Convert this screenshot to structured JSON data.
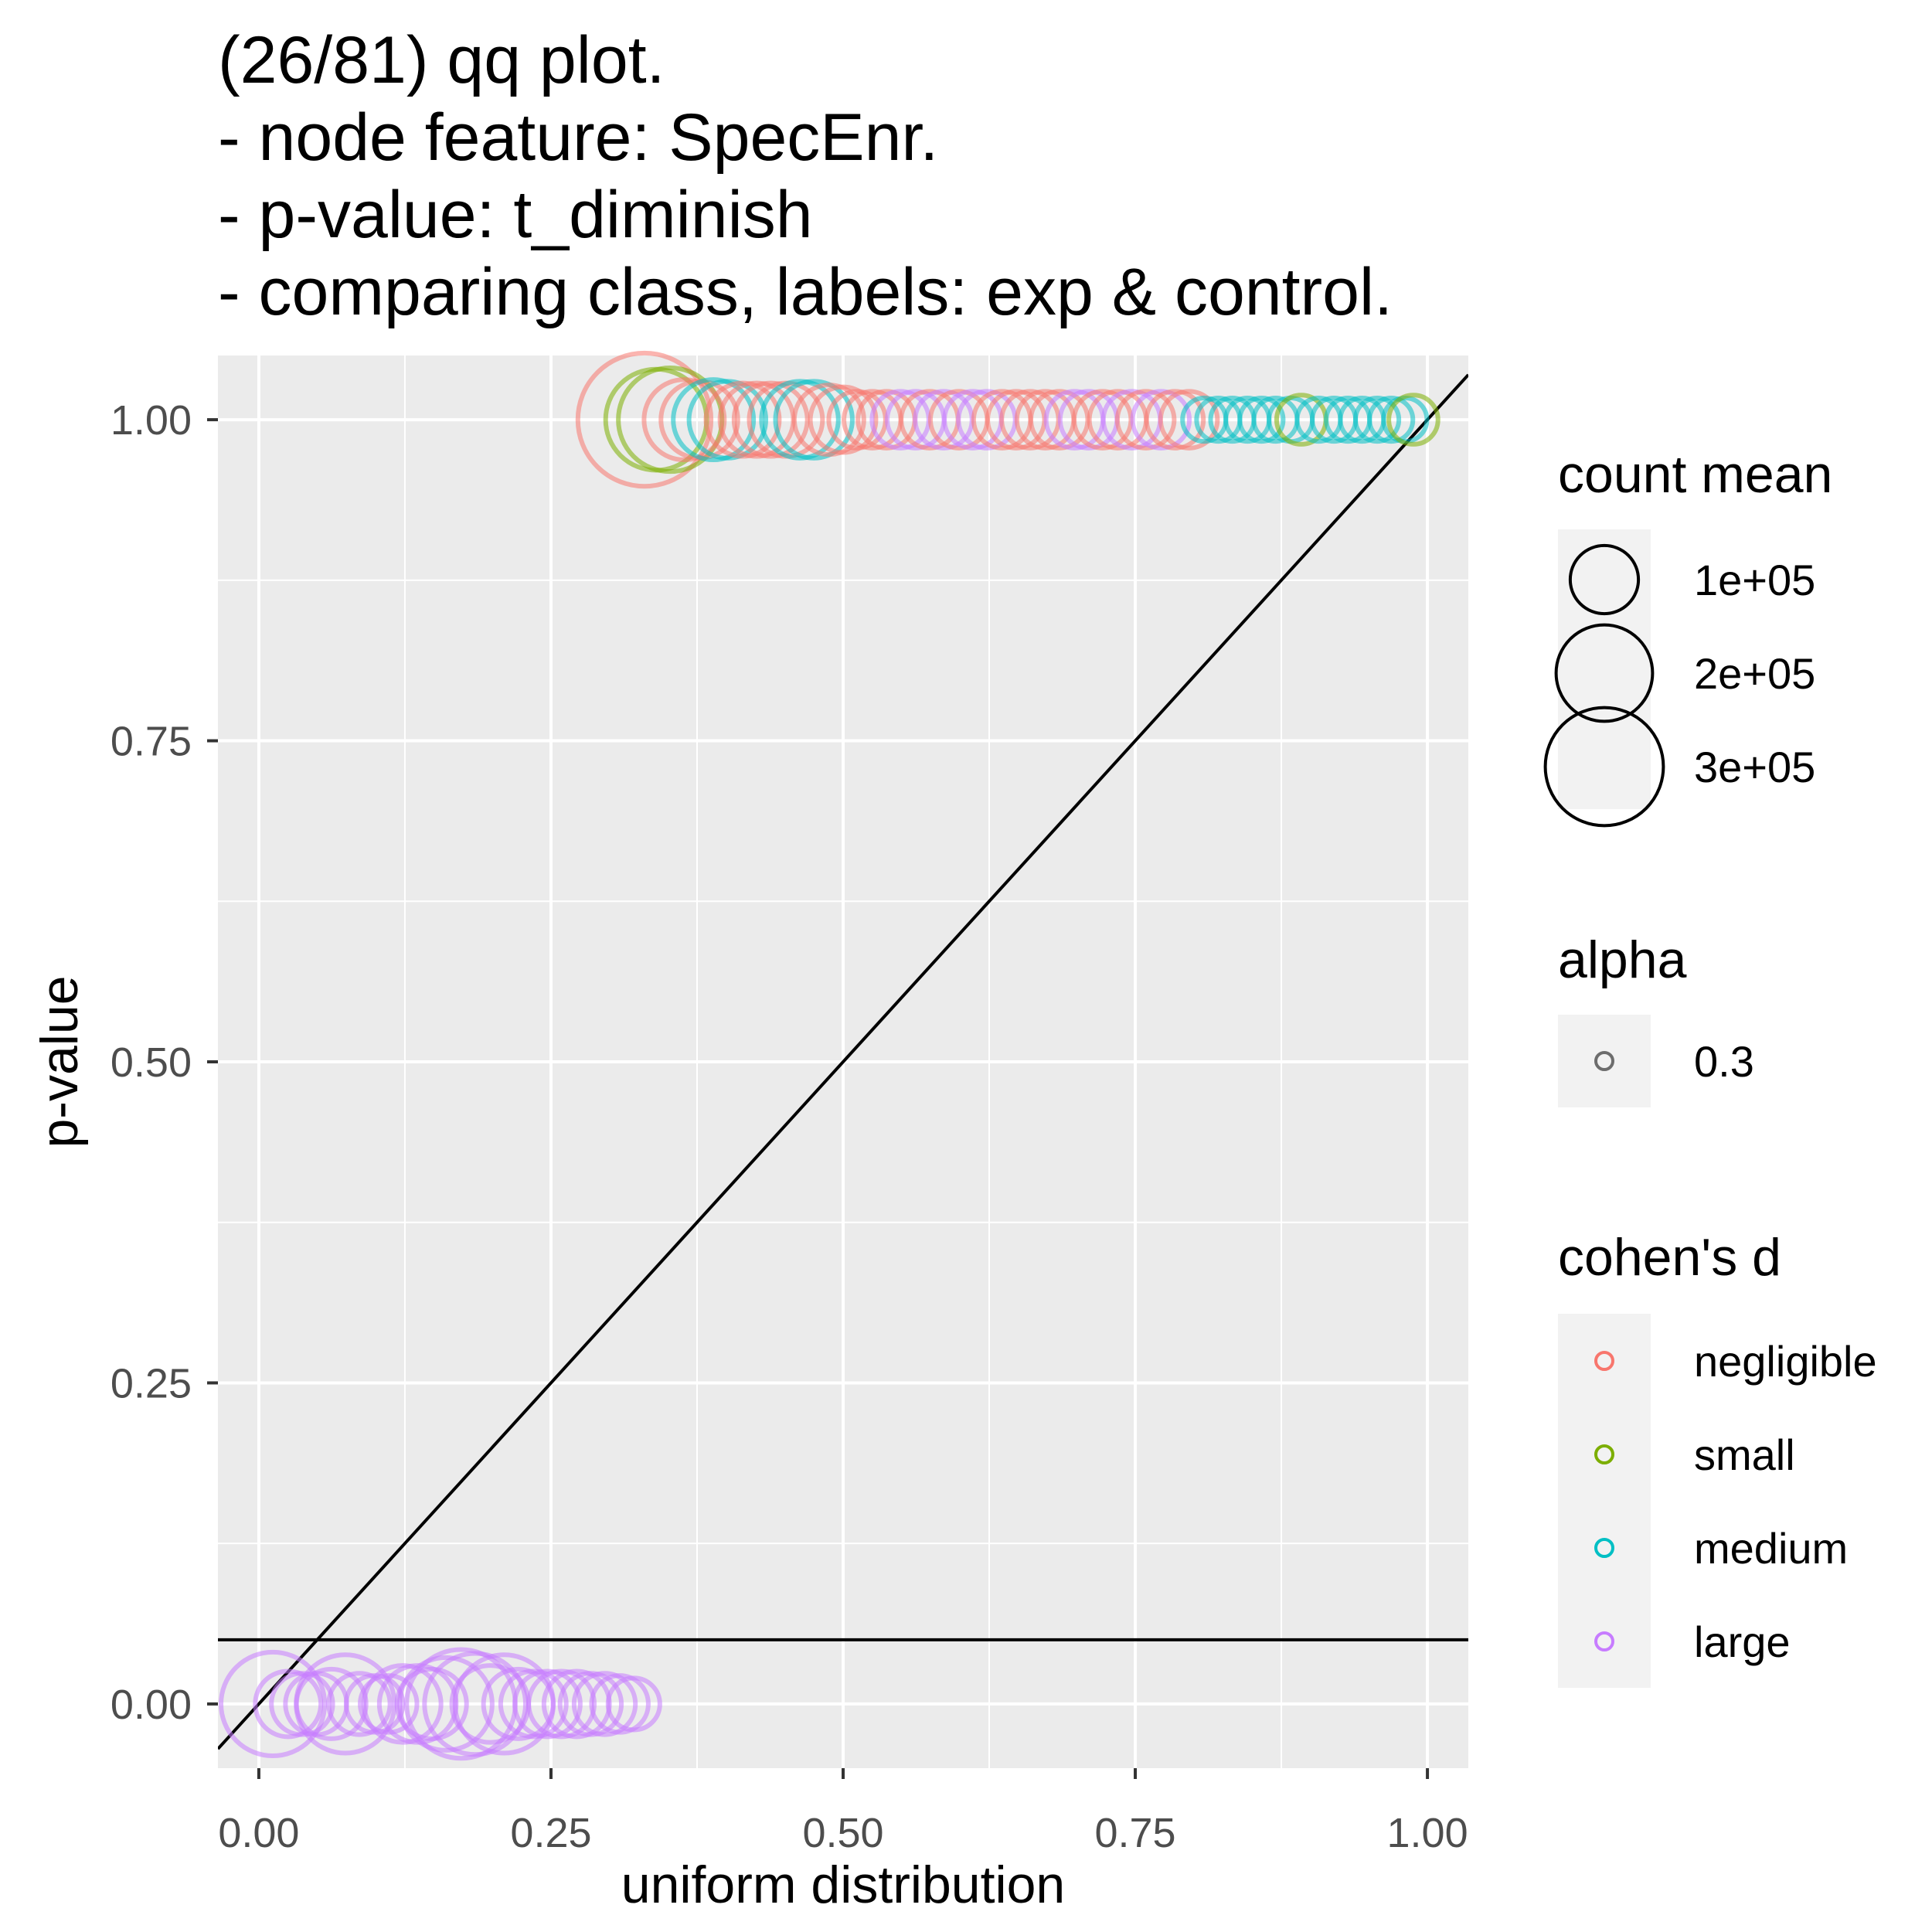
{
  "title": {
    "lines": [
      "(26/81) qq plot.",
      "- node feature: SpecEnr.",
      "- p-value: t_diminish",
      "- comparing class, labels: exp & control."
    ]
  },
  "chart_data": {
    "type": "scatter",
    "title": "(26/81) qq plot. - node feature: SpecEnr. - p-value: t_diminish - comparing class, labels: exp & control.",
    "xlabel": "uniform distribution",
    "ylabel": "p-value",
    "xlim": [
      -0.035,
      1.035
    ],
    "ylim": [
      -0.05,
      1.05
    ],
    "xticks": [
      0.0,
      0.25,
      0.5,
      0.75,
      1.0
    ],
    "xtick_labels": [
      "0.00",
      "0.25",
      "0.50",
      "0.75",
      "1.00"
    ],
    "yticks": [
      0.0,
      0.25,
      0.5,
      0.75,
      1.0
    ],
    "ytick_labels": [
      "0.00",
      "0.25",
      "0.50",
      "0.75",
      "1.00"
    ],
    "reference_lines": [
      {
        "type": "diagonal",
        "intercept": 0,
        "slope": 1,
        "color": "#000000"
      },
      {
        "type": "horizontal",
        "y": 0.05,
        "color": "#000000"
      }
    ],
    "colors": {
      "negligible": "#F8766D",
      "small": "#7CAE00",
      "medium": "#00BFC4",
      "large": "#C77CFF"
    },
    "points": [
      {
        "x": 0.012,
        "y": 0.0,
        "size": 200000,
        "cohen": "large"
      },
      {
        "x": 0.025,
        "y": 0.0,
        "size": 80000,
        "cohen": "large"
      },
      {
        "x": 0.037,
        "y": 0.0,
        "size": 70000,
        "cohen": "large"
      },
      {
        "x": 0.049,
        "y": 0.0,
        "size": 70000,
        "cohen": "large"
      },
      {
        "x": 0.062,
        "y": 0.0,
        "size": 90000,
        "cohen": "large"
      },
      {
        "x": 0.074,
        "y": 0.0,
        "size": 180000,
        "cohen": "large"
      },
      {
        "x": 0.086,
        "y": 0.0,
        "size": 70000,
        "cohen": "large"
      },
      {
        "x": 0.099,
        "y": 0.0,
        "size": 60000,
        "cohen": "large"
      },
      {
        "x": 0.111,
        "y": 0.0,
        "size": 60000,
        "cohen": "large"
      },
      {
        "x": 0.123,
        "y": 0.0,
        "size": 110000,
        "cohen": "large"
      },
      {
        "x": 0.136,
        "y": 0.0,
        "size": 110000,
        "cohen": "large"
      },
      {
        "x": 0.148,
        "y": 0.0,
        "size": 90000,
        "cohen": "large"
      },
      {
        "x": 0.16,
        "y": 0.0,
        "size": 160000,
        "cohen": "large"
      },
      {
        "x": 0.173,
        "y": 0.0,
        "size": 220000,
        "cohen": "large"
      },
      {
        "x": 0.185,
        "y": 0.0,
        "size": 190000,
        "cohen": "large"
      },
      {
        "x": 0.198,
        "y": 0.0,
        "size": 110000,
        "cohen": "large"
      },
      {
        "x": 0.21,
        "y": 0.0,
        "size": 180000,
        "cohen": "large"
      },
      {
        "x": 0.222,
        "y": 0.0,
        "size": 90000,
        "cohen": "large"
      },
      {
        "x": 0.235,
        "y": 0.0,
        "size": 80000,
        "cohen": "large"
      },
      {
        "x": 0.247,
        "y": 0.0,
        "size": 80000,
        "cohen": "large"
      },
      {
        "x": 0.259,
        "y": 0.0,
        "size": 80000,
        "cohen": "large"
      },
      {
        "x": 0.272,
        "y": 0.0,
        "size": 80000,
        "cohen": "large"
      },
      {
        "x": 0.284,
        "y": 0.0,
        "size": 70000,
        "cohen": "large"
      },
      {
        "x": 0.296,
        "y": 0.0,
        "size": 70000,
        "cohen": "large"
      },
      {
        "x": 0.309,
        "y": 0.0,
        "size": 60000,
        "cohen": "large"
      },
      {
        "x": 0.321,
        "y": 0.0,
        "size": 50000,
        "cohen": "large"
      },
      {
        "x": 0.33,
        "y": 1.0,
        "size": 330000,
        "cohen": "negligible"
      },
      {
        "x": 0.34,
        "y": 1.0,
        "size": 190000,
        "cohen": "small"
      },
      {
        "x": 0.352,
        "y": 1.0,
        "size": 200000,
        "cohen": "small"
      },
      {
        "x": 0.364,
        "y": 1.0,
        "size": 120000,
        "cohen": "negligible"
      },
      {
        "x": 0.377,
        "y": 1.0,
        "size": 110000,
        "cohen": "negligible"
      },
      {
        "x": 0.389,
        "y": 1.0,
        "size": 120000,
        "cohen": "medium"
      },
      {
        "x": 0.401,
        "y": 1.0,
        "size": 110000,
        "cohen": "medium"
      },
      {
        "x": 0.414,
        "y": 1.0,
        "size": 100000,
        "cohen": "negligible"
      },
      {
        "x": 0.426,
        "y": 1.0,
        "size": 100000,
        "cohen": "negligible"
      },
      {
        "x": 0.438,
        "y": 1.0,
        "size": 100000,
        "cohen": "negligible"
      },
      {
        "x": 0.451,
        "y": 1.0,
        "size": 100000,
        "cohen": "negligible"
      },
      {
        "x": 0.463,
        "y": 1.0,
        "size": 110000,
        "cohen": "medium"
      },
      {
        "x": 0.475,
        "y": 1.0,
        "size": 110000,
        "cohen": "medium"
      },
      {
        "x": 0.488,
        "y": 1.0,
        "size": 90000,
        "cohen": "negligible"
      },
      {
        "x": 0.5,
        "y": 1.0,
        "size": 80000,
        "cohen": "negligible"
      },
      {
        "x": 0.512,
        "y": 1.0,
        "size": 60000,
        "cohen": "negligible"
      },
      {
        "x": 0.525,
        "y": 1.0,
        "size": 60000,
        "cohen": "negligible"
      },
      {
        "x": 0.537,
        "y": 1.0,
        "size": 60000,
        "cohen": "negligible"
      },
      {
        "x": 0.549,
        "y": 1.0,
        "size": 60000,
        "cohen": "large"
      },
      {
        "x": 0.562,
        "y": 1.0,
        "size": 60000,
        "cohen": "large"
      },
      {
        "x": 0.574,
        "y": 1.0,
        "size": 60000,
        "cohen": "negligible"
      },
      {
        "x": 0.586,
        "y": 1.0,
        "size": 60000,
        "cohen": "large"
      },
      {
        "x": 0.599,
        "y": 1.0,
        "size": 60000,
        "cohen": "negligible"
      },
      {
        "x": 0.611,
        "y": 1.0,
        "size": 60000,
        "cohen": "large"
      },
      {
        "x": 0.623,
        "y": 1.0,
        "size": 60000,
        "cohen": "large"
      },
      {
        "x": 0.636,
        "y": 1.0,
        "size": 60000,
        "cohen": "negligible"
      },
      {
        "x": 0.648,
        "y": 1.0,
        "size": 60000,
        "cohen": "negligible"
      },
      {
        "x": 0.66,
        "y": 1.0,
        "size": 60000,
        "cohen": "negligible"
      },
      {
        "x": 0.673,
        "y": 1.0,
        "size": 60000,
        "cohen": "negligible"
      },
      {
        "x": 0.685,
        "y": 1.0,
        "size": 60000,
        "cohen": "negligible"
      },
      {
        "x": 0.698,
        "y": 1.0,
        "size": 60000,
        "cohen": "large"
      },
      {
        "x": 0.71,
        "y": 1.0,
        "size": 60000,
        "cohen": "large"
      },
      {
        "x": 0.722,
        "y": 1.0,
        "size": 60000,
        "cohen": "negligible"
      },
      {
        "x": 0.735,
        "y": 1.0,
        "size": 60000,
        "cohen": "negligible"
      },
      {
        "x": 0.747,
        "y": 1.0,
        "size": 60000,
        "cohen": "large"
      },
      {
        "x": 0.759,
        "y": 1.0,
        "size": 60000,
        "cohen": "negligible"
      },
      {
        "x": 0.772,
        "y": 1.0,
        "size": 60000,
        "cohen": "large"
      },
      {
        "x": 0.784,
        "y": 1.0,
        "size": 60000,
        "cohen": "negligible"
      },
      {
        "x": 0.796,
        "y": 1.0,
        "size": 60000,
        "cohen": "negligible"
      },
      {
        "x": 0.809,
        "y": 1.0,
        "size": 35000,
        "cohen": "medium"
      },
      {
        "x": 0.821,
        "y": 1.0,
        "size": 35000,
        "cohen": "medium"
      },
      {
        "x": 0.833,
        "y": 1.0,
        "size": 35000,
        "cohen": "medium"
      },
      {
        "x": 0.846,
        "y": 1.0,
        "size": 35000,
        "cohen": "medium"
      },
      {
        "x": 0.858,
        "y": 1.0,
        "size": 35000,
        "cohen": "medium"
      },
      {
        "x": 0.87,
        "y": 1.0,
        "size": 35000,
        "cohen": "medium"
      },
      {
        "x": 0.883,
        "y": 1.0,
        "size": 35000,
        "cohen": "medium"
      },
      {
        "x": 0.892,
        "y": 1.0,
        "size": 45000,
        "cohen": "small"
      },
      {
        "x": 0.907,
        "y": 1.0,
        "size": 35000,
        "cohen": "medium"
      },
      {
        "x": 0.92,
        "y": 1.0,
        "size": 35000,
        "cohen": "medium"
      },
      {
        "x": 0.932,
        "y": 1.0,
        "size": 35000,
        "cohen": "medium"
      },
      {
        "x": 0.944,
        "y": 1.0,
        "size": 35000,
        "cohen": "medium"
      },
      {
        "x": 0.957,
        "y": 1.0,
        "size": 35000,
        "cohen": "medium"
      },
      {
        "x": 0.969,
        "y": 1.0,
        "size": 35000,
        "cohen": "medium"
      },
      {
        "x": 0.981,
        "y": 1.0,
        "size": 35000,
        "cohen": "medium"
      },
      {
        "x": 0.988,
        "y": 1.0,
        "size": 45000,
        "cohen": "small"
      }
    ]
  },
  "legend": {
    "size": {
      "title": "count mean",
      "entries": [
        {
          "label": "1e+05",
          "value": 100000
        },
        {
          "label": "2e+05",
          "value": 200000
        },
        {
          "label": "3e+05",
          "value": 300000
        }
      ]
    },
    "alpha": {
      "title": "alpha",
      "entries": [
        {
          "label": "0.3",
          "value": 0.3
        }
      ]
    },
    "color": {
      "title": "cohen's d",
      "entries": [
        {
          "label": "negligible",
          "color": "#F8766D"
        },
        {
          "label": "small",
          "color": "#7CAE00"
        },
        {
          "label": "medium",
          "color": "#00BFC4"
        },
        {
          "label": "large",
          "color": "#C77CFF"
        }
      ]
    }
  }
}
